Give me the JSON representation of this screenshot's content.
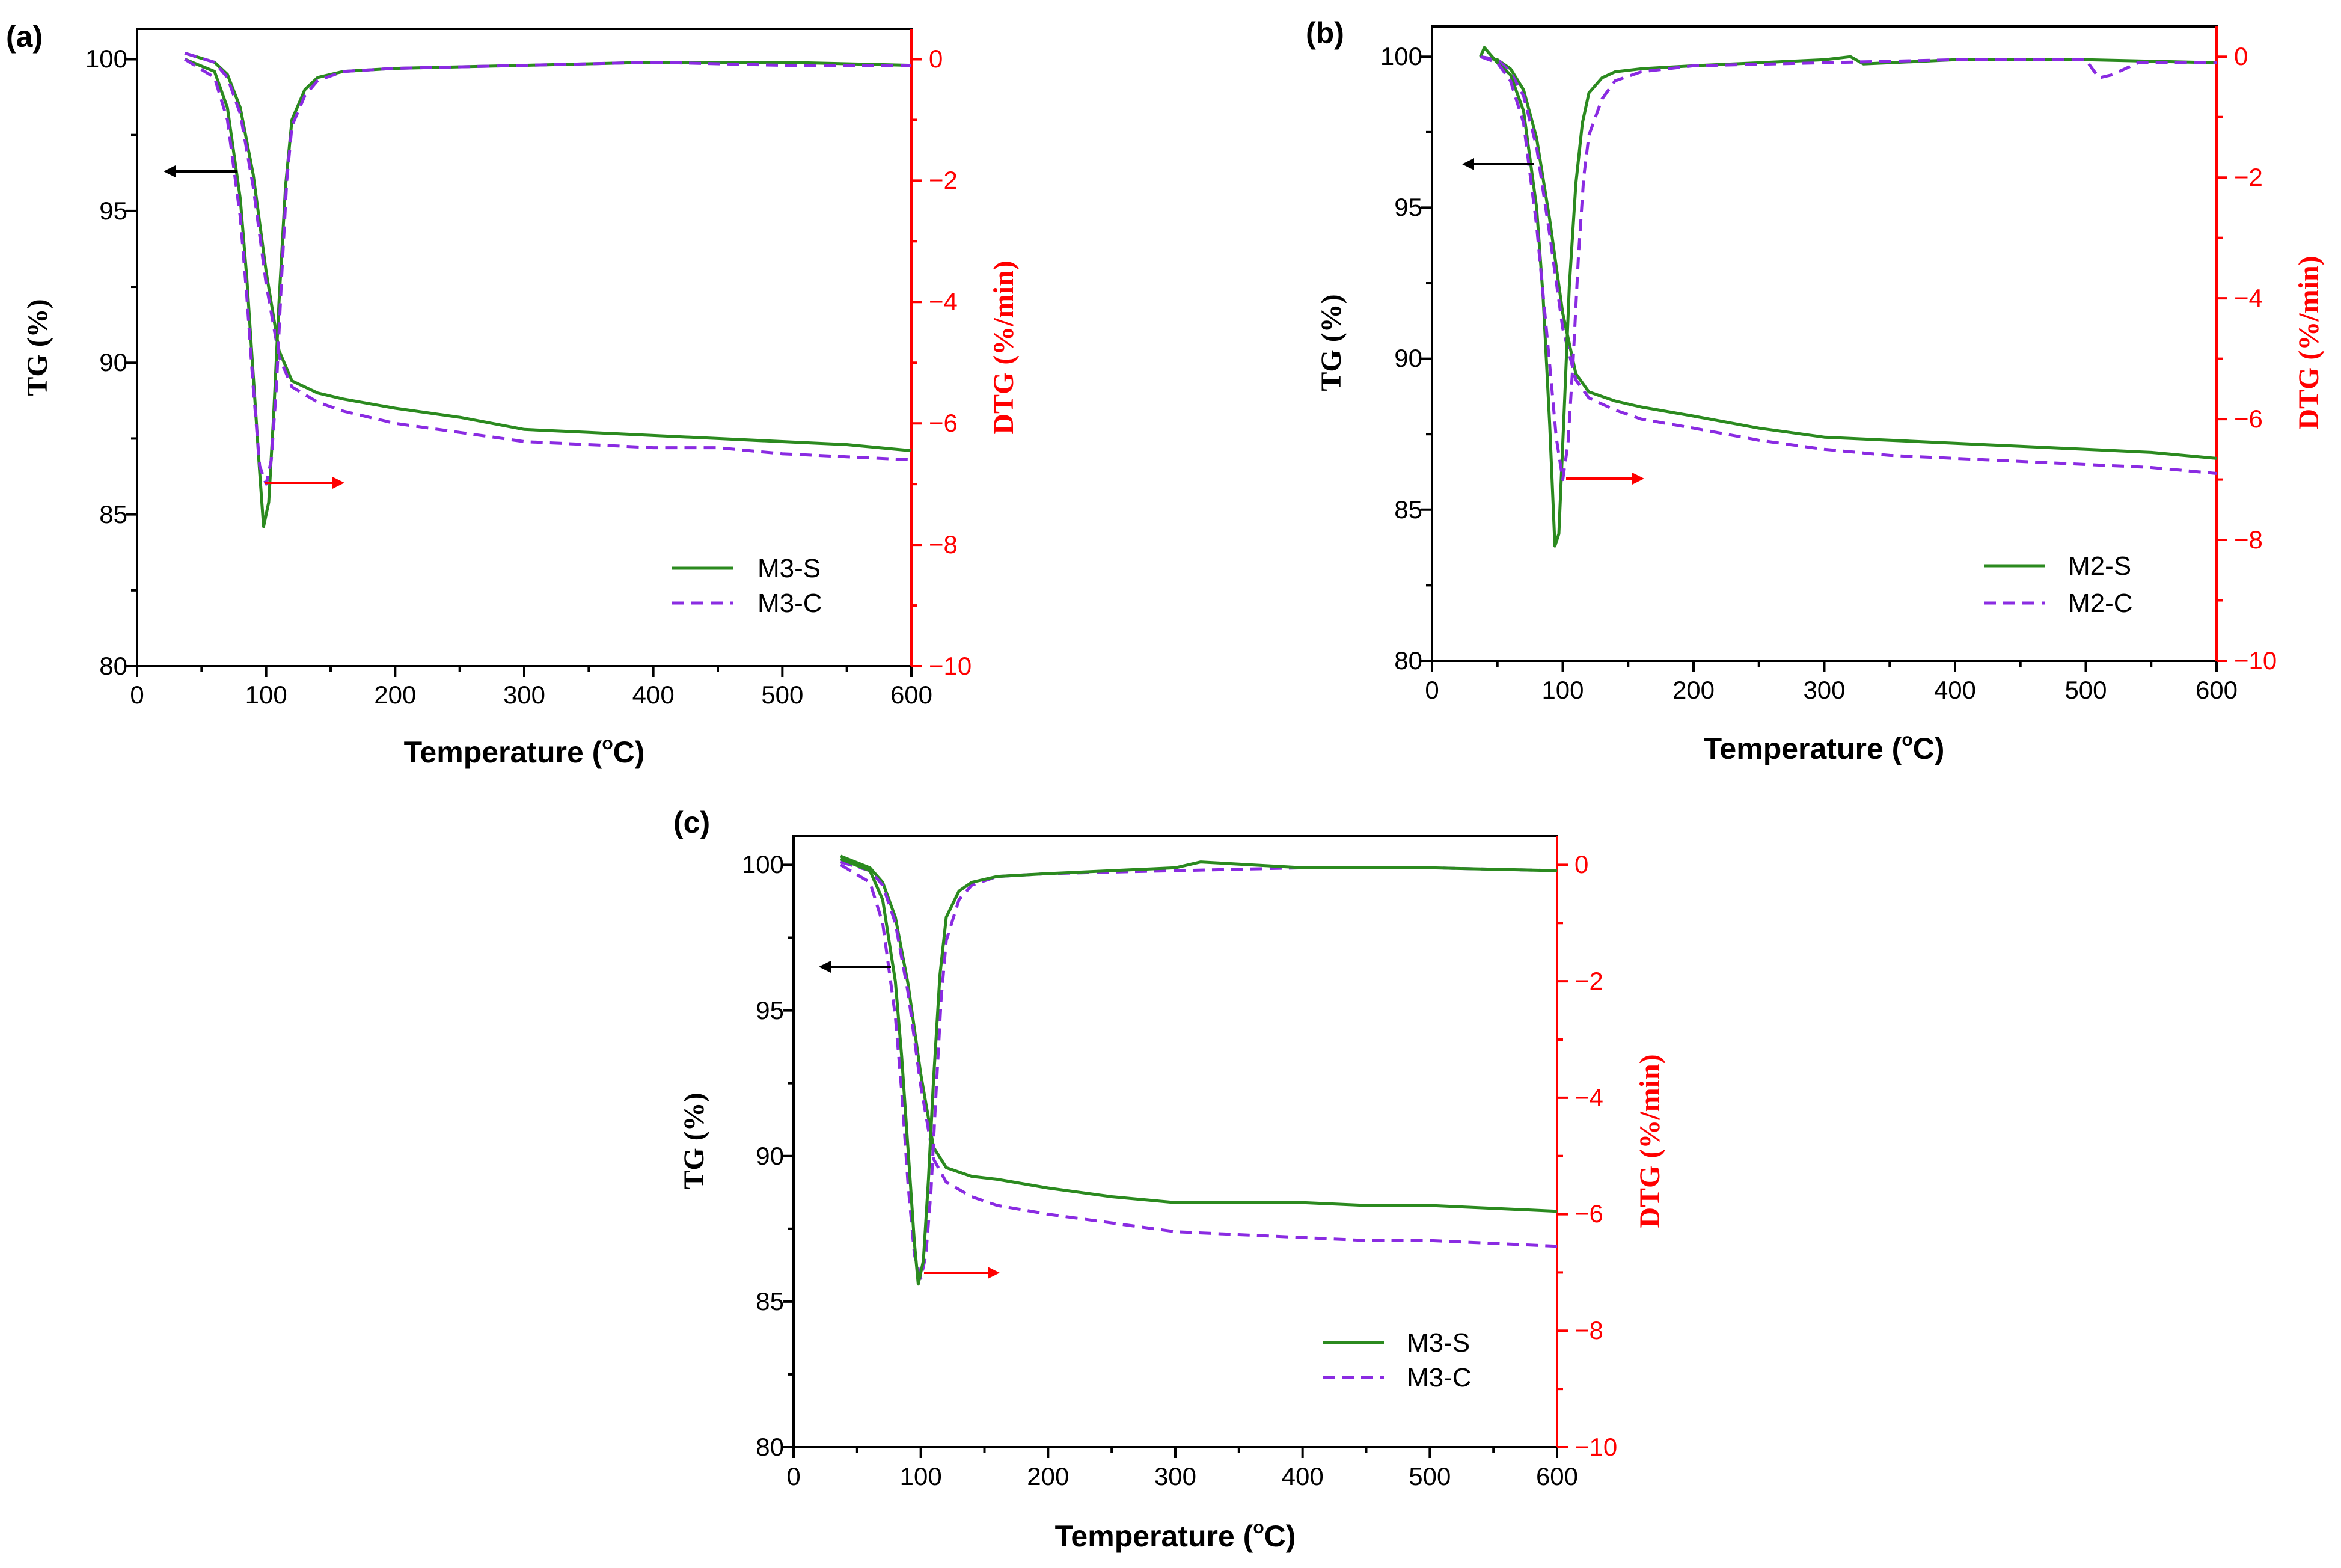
{
  "colors": {
    "tg_s": "#2b8a1f",
    "tg_c": "#8a2be2",
    "dtg_axis": "#ff0000",
    "arrow_left": "#000000",
    "arrow_right": "#ff0000"
  },
  "chart_data": [
    {
      "type": "line",
      "panel_label": "(a)",
      "xlabel": "Temperature (°C)",
      "xlabel_main": "Temperature (",
      "xlabel_deg": "o",
      "xlabel_unit": "C)",
      "ylabel": "TG (%)",
      "y2label": "DTG (%/min)",
      "xlim": [
        0,
        600
      ],
      "ylim": [
        80,
        101
      ],
      "y2lim": [
        -10,
        0.5
      ],
      "xticks": [
        "0",
        "100",
        "200",
        "300",
        "400",
        "500",
        "600"
      ],
      "yticks": [
        "80",
        "85",
        "90",
        "95",
        "100"
      ],
      "y2ticks": [
        "0",
        "−2",
        "−4",
        "−6",
        "−8",
        "−10"
      ],
      "legend": [
        "M3-S",
        "M3-C"
      ],
      "legend_position": "lower-right",
      "series": [
        {
          "name": "M3-S",
          "kind": "TG",
          "style": "solid",
          "x": [
            37,
            60,
            70,
            80,
            90,
            100,
            110,
            120,
            140,
            160,
            200,
            250,
            300,
            350,
            400,
            450,
            500,
            550,
            600
          ],
          "y": [
            100.2,
            99.9,
            99.5,
            98.4,
            96.2,
            93.0,
            90.4,
            89.4,
            89.0,
            88.8,
            88.5,
            88.2,
            87.8,
            87.7,
            87.6,
            87.5,
            87.4,
            87.3,
            87.1
          ]
        },
        {
          "name": "M3-C",
          "kind": "TG",
          "style": "dashed",
          "x": [
            37,
            60,
            70,
            80,
            90,
            100,
            110,
            120,
            140,
            160,
            200,
            250,
            300,
            350,
            400,
            450,
            500,
            550,
            600
          ],
          "y": [
            100.2,
            99.9,
            99.4,
            98.2,
            95.8,
            92.6,
            90.2,
            89.2,
            88.7,
            88.4,
            88.0,
            87.7,
            87.4,
            87.3,
            87.2,
            87.2,
            87.0,
            86.9,
            86.8
          ]
        },
        {
          "name": "M3-S",
          "kind": "DTG",
          "style": "solid",
          "x": [
            37,
            60,
            70,
            80,
            85,
            90,
            95,
            98,
            102,
            106,
            110,
            115,
            120,
            130,
            140,
            160,
            200,
            300,
            400,
            500,
            600
          ],
          "y": [
            0.0,
            -0.2,
            -0.8,
            -2.3,
            -3.6,
            -5.2,
            -6.8,
            -7.7,
            -7.3,
            -5.8,
            -4.0,
            -2.1,
            -1.0,
            -0.5,
            -0.3,
            -0.2,
            -0.15,
            -0.1,
            -0.05,
            -0.05,
            -0.1
          ]
        },
        {
          "name": "M3-C",
          "kind": "DTG",
          "style": "dashed",
          "x": [
            37,
            60,
            70,
            80,
            85,
            90,
            95,
            100,
            104,
            108,
            112,
            116,
            120,
            130,
            140,
            160,
            200,
            300,
            400,
            500,
            600
          ],
          "y": [
            0.0,
            -0.3,
            -1.0,
            -2.6,
            -3.9,
            -5.4,
            -6.7,
            -7.0,
            -6.6,
            -5.4,
            -3.6,
            -2.0,
            -1.1,
            -0.6,
            -0.35,
            -0.2,
            -0.15,
            -0.1,
            -0.05,
            -0.1,
            -0.1
          ]
        }
      ]
    },
    {
      "type": "line",
      "panel_label": "(b)",
      "xlabel": "Temperature (°C)",
      "xlabel_main": "Temperature (",
      "xlabel_deg": "o",
      "xlabel_unit": "C)",
      "ylabel": "TG (%)",
      "y2label": "DTG (%/min)",
      "xlim": [
        0,
        600
      ],
      "ylim": [
        80,
        101
      ],
      "y2lim": [
        -10,
        0.5
      ],
      "xticks": [
        "0",
        "100",
        "200",
        "300",
        "400",
        "500",
        "600"
      ],
      "yticks": [
        "80",
        "85",
        "90",
        "95",
        "100"
      ],
      "y2ticks": [
        "0",
        "−2",
        "−4",
        "−6",
        "−8",
        "−10"
      ],
      "legend": [
        "M2-S",
        "M2-C"
      ],
      "legend_position": "lower-right",
      "series": [
        {
          "name": "M2-S",
          "kind": "TG",
          "style": "solid",
          "x": [
            37,
            50,
            60,
            70,
            80,
            90,
            100,
            110,
            120,
            140,
            160,
            200,
            250,
            300,
            350,
            400,
            450,
            500,
            550,
            600
          ],
          "y": [
            100.0,
            99.9,
            99.6,
            98.9,
            97.3,
            94.6,
            91.5,
            89.5,
            88.9,
            88.6,
            88.4,
            88.1,
            87.7,
            87.4,
            87.3,
            87.2,
            87.1,
            87.0,
            86.9,
            86.7
          ]
        },
        {
          "name": "M2-C",
          "kind": "TG",
          "style": "dashed",
          "x": [
            37,
            50,
            60,
            70,
            80,
            90,
            100,
            110,
            120,
            140,
            160,
            200,
            250,
            300,
            350,
            400,
            450,
            500,
            550,
            600
          ],
          "y": [
            100.0,
            99.9,
            99.5,
            98.7,
            97.0,
            94.1,
            91.0,
            89.3,
            88.7,
            88.3,
            88.0,
            87.7,
            87.3,
            87.0,
            86.8,
            86.7,
            86.6,
            86.5,
            86.4,
            86.2
          ]
        },
        {
          "name": "M2-S",
          "kind": "DTG",
          "style": "solid",
          "x": [
            37,
            40,
            50,
            60,
            70,
            80,
            85,
            90,
            94,
            97,
            101,
            105,
            110,
            115,
            120,
            130,
            140,
            160,
            200,
            300,
            320,
            330,
            400,
            500,
            600
          ],
          "y": [
            0.0,
            0.15,
            -0.1,
            -0.3,
            -0.9,
            -2.5,
            -4.0,
            -6.1,
            -8.1,
            -7.9,
            -5.9,
            -3.8,
            -2.1,
            -1.1,
            -0.6,
            -0.35,
            -0.25,
            -0.2,
            -0.15,
            -0.05,
            0.0,
            -0.12,
            -0.05,
            -0.05,
            -0.1
          ]
        },
        {
          "name": "M2-C",
          "kind": "DTG",
          "style": "dashed",
          "x": [
            37,
            50,
            60,
            70,
            80,
            90,
            95,
            100,
            104,
            108,
            112,
            116,
            120,
            130,
            140,
            160,
            200,
            300,
            400,
            500,
            510,
            520,
            540,
            600
          ],
          "y": [
            0.0,
            -0.1,
            -0.4,
            -1.1,
            -2.8,
            -5.1,
            -6.3,
            -7.0,
            -6.4,
            -5.0,
            -3.3,
            -2.0,
            -1.3,
            -0.7,
            -0.4,
            -0.25,
            -0.15,
            -0.1,
            -0.05,
            -0.05,
            -0.35,
            -0.3,
            -0.1,
            -0.1
          ]
        }
      ]
    },
    {
      "type": "line",
      "panel_label": "(c)",
      "xlabel": "Temperature (°C)",
      "xlabel_main": "Temperature (",
      "xlabel_deg": "o",
      "xlabel_unit": "C)",
      "ylabel": "TG (%)",
      "y2label": "DTG (%/min)",
      "xlim": [
        0,
        600
      ],
      "ylim": [
        80,
        101
      ],
      "y2lim": [
        -10,
        0.5
      ],
      "xticks": [
        "0",
        "100",
        "200",
        "300",
        "400",
        "500",
        "600"
      ],
      "yticks": [
        "80",
        "85",
        "90",
        "95",
        "100"
      ],
      "y2ticks": [
        "0",
        "−2",
        "−4",
        "−6",
        "−8",
        "−10"
      ],
      "legend": [
        "M3-S",
        "M3-C"
      ],
      "legend_position": "lower-right",
      "series": [
        {
          "name": "M3-S",
          "kind": "TG",
          "style": "solid",
          "x": [
            37,
            60,
            70,
            80,
            90,
            100,
            110,
            120,
            140,
            160,
            200,
            250,
            300,
            350,
            400,
            450,
            500,
            550,
            600
          ],
          "y": [
            100.3,
            99.9,
            99.4,
            98.2,
            95.9,
            92.8,
            90.3,
            89.6,
            89.3,
            89.2,
            88.9,
            88.6,
            88.4,
            88.4,
            88.4,
            88.3,
            88.3,
            88.2,
            88.1
          ]
        },
        {
          "name": "M3-C",
          "kind": "TG",
          "style": "dashed",
          "x": [
            37,
            60,
            70,
            80,
            90,
            100,
            110,
            120,
            140,
            160,
            200,
            250,
            300,
            350,
            400,
            450,
            500,
            550,
            600
          ],
          "y": [
            100.1,
            99.8,
            99.3,
            98.0,
            95.6,
            92.4,
            89.9,
            89.1,
            88.6,
            88.3,
            88.0,
            87.7,
            87.4,
            87.3,
            87.2,
            87.1,
            87.1,
            87.0,
            86.9
          ]
        },
        {
          "name": "M3-C",
          "kind": "DTG",
          "style": "dashed",
          "x": [
            37,
            60,
            70,
            80,
            85,
            90,
            95,
            100,
            104,
            108,
            112,
            116,
            120,
            130,
            140,
            160,
            200,
            300,
            400,
            500,
            600
          ],
          "y": [
            0.0,
            -0.3,
            -1.0,
            -2.6,
            -3.9,
            -5.5,
            -6.7,
            -7.1,
            -6.7,
            -5.6,
            -3.9,
            -2.3,
            -1.3,
            -0.6,
            -0.35,
            -0.2,
            -0.15,
            -0.1,
            -0.05,
            -0.05,
            -0.1
          ]
        },
        {
          "name": "M3-S",
          "kind": "DTG",
          "style": "solid",
          "x": [
            37,
            60,
            70,
            80,
            85,
            90,
            95,
            98,
            102,
            106,
            110,
            115,
            120,
            130,
            140,
            160,
            200,
            300,
            320,
            400,
            500,
            600
          ],
          "y": [
            0.1,
            -0.1,
            -0.6,
            -2.0,
            -3.3,
            -4.9,
            -6.5,
            -7.2,
            -6.8,
            -5.4,
            -3.7,
            -1.9,
            -0.9,
            -0.45,
            -0.3,
            -0.2,
            -0.15,
            -0.05,
            0.05,
            -0.05,
            -0.05,
            -0.1
          ]
        }
      ]
    }
  ]
}
